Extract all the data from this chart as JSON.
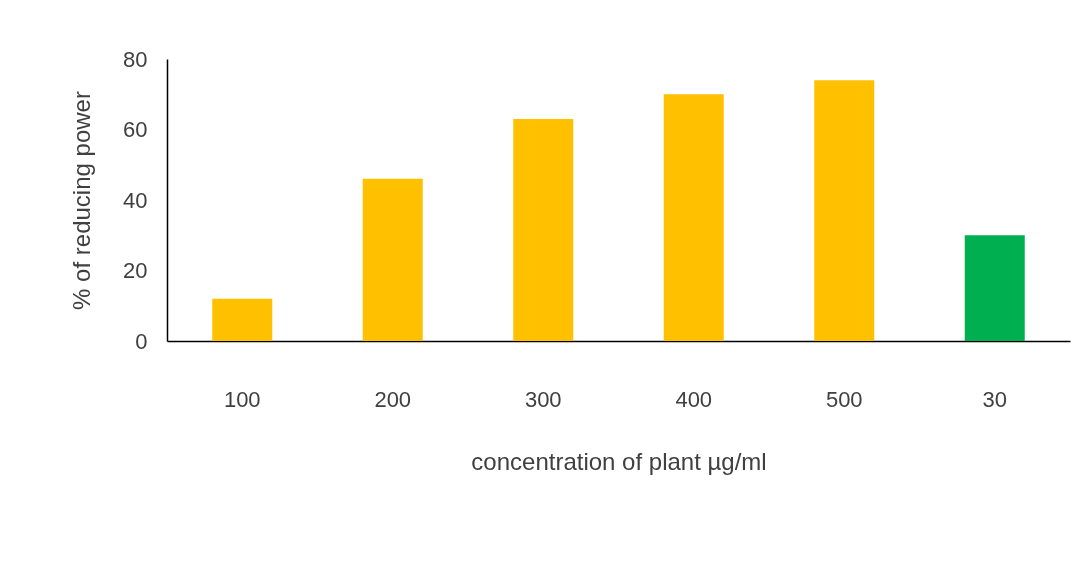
{
  "chart_data": {
    "type": "bar",
    "xlabel": "concentration of plant µg/ml",
    "ylabel": "% of reducing power",
    "categories": [
      "100",
      "200",
      "300",
      "400",
      "500",
      "30"
    ],
    "values": [
      12,
      46,
      63,
      70,
      74,
      30
    ],
    "colors": [
      "#ffc000",
      "#ffc000",
      "#ffc000",
      "#ffc000",
      "#ffc000",
      "#00b050"
    ],
    "ylim": [
      0,
      80
    ],
    "yticks": [
      0,
      20,
      40,
      60,
      80
    ],
    "grid": false,
    "legend": false
  }
}
